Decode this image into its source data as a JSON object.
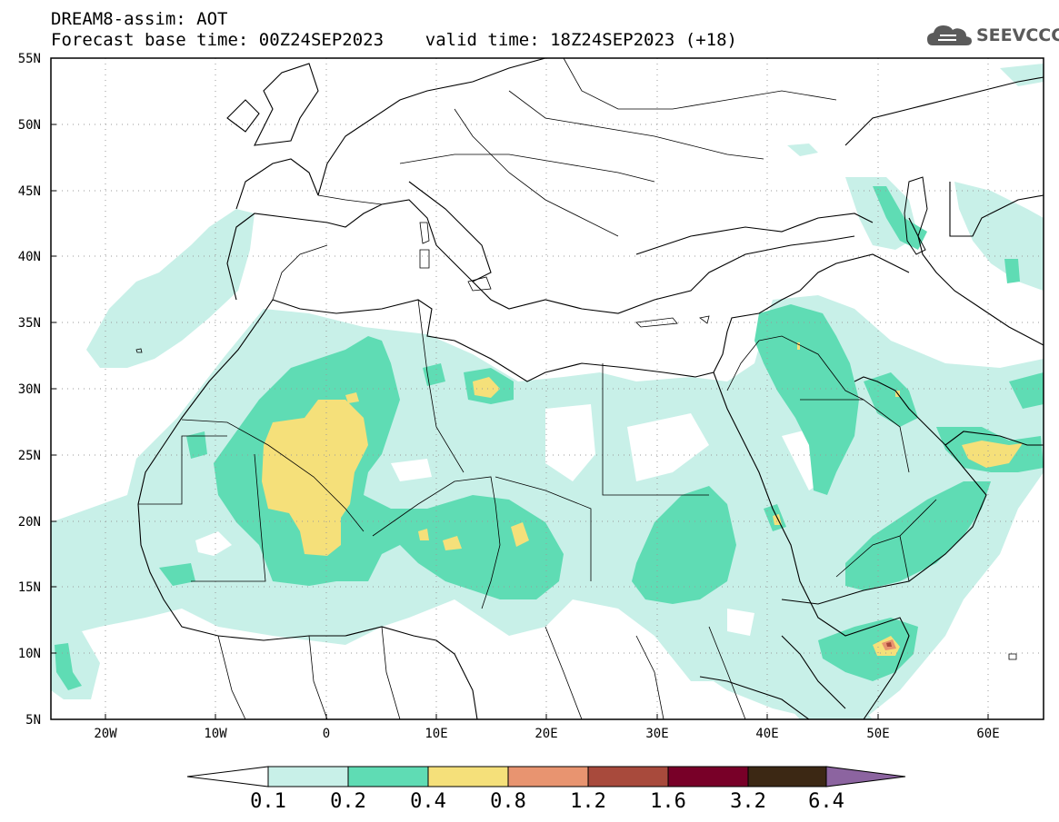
{
  "header": {
    "title_line1": "DREAM8-assim: AOT",
    "title_line2": "Forecast base time: 00Z24SEP2023    valid time: 18Z24SEP2023 (+18)"
  },
  "logo": {
    "text": "SEEVCCC",
    "icon": "cloud-icon"
  },
  "map": {
    "projection": "lat-lon",
    "lon_range": [
      -25,
      65
    ],
    "lat_range": [
      5,
      55
    ],
    "lat_ticks": [
      "5N",
      "10N",
      "15N",
      "20N",
      "25N",
      "30N",
      "35N",
      "40N",
      "45N",
      "50N",
      "55N"
    ],
    "lon_ticks": [
      "20W",
      "10W",
      "0",
      "10E",
      "20E",
      "30E",
      "40E",
      "50E",
      "60E"
    ],
    "grid": "dotted"
  },
  "colorbar": {
    "labels": [
      "0.1",
      "0.2",
      "0.4",
      "0.8",
      "1.2",
      "1.6",
      "3.2",
      "6.4"
    ],
    "colors": [
      "#ffffff",
      "#c8f0e8",
      "#5fdcb4",
      "#f5e07a",
      "#e89470",
      "#a84a3c",
      "#780028",
      "#3c2814",
      "#8c64a0"
    ]
  },
  "legend_colors": {
    "c01": "#c8f0e8",
    "c02": "#5fdcb4",
    "c04": "#f5e07a",
    "c08": "#e89470",
    "c12": "#a84a3c"
  }
}
